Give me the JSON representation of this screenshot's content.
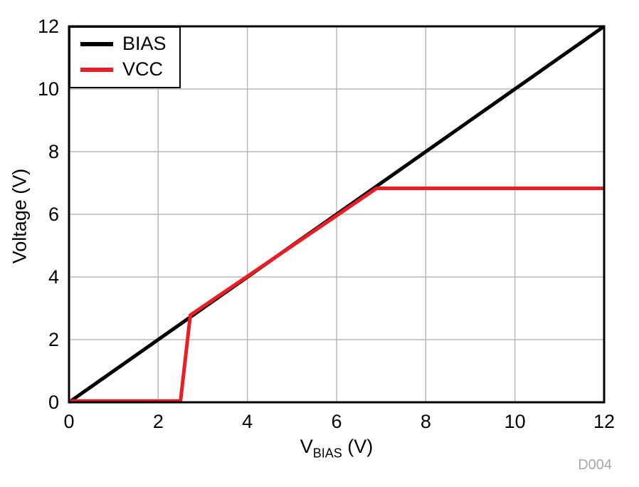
{
  "chart_data": {
    "type": "line",
    "title": "",
    "xlabel_main": "V",
    "xlabel_sub": "BIAS",
    "xlabel_unit": " (V)",
    "ylabel": "Voltage (V)",
    "xlim": [
      0,
      12
    ],
    "ylim": [
      0,
      12
    ],
    "xticks": [
      0,
      2,
      4,
      6,
      8,
      10,
      12
    ],
    "yticks": [
      0,
      2,
      4,
      6,
      8,
      10,
      12
    ],
    "grid": true,
    "grid_color": "#b8b8b8",
    "border_color": "#000000",
    "legend_position": "top-left",
    "figure_id": "D004",
    "series": [
      {
        "name": "BIAS",
        "color": "#000000",
        "points": [
          [
            0,
            0
          ],
          [
            12,
            12
          ]
        ]
      },
      {
        "name": "VCC",
        "color": "#ed1c24",
        "points": [
          [
            0,
            0.04
          ],
          [
            2.5,
            0.04
          ],
          [
            2.72,
            2.78
          ],
          [
            6.9,
            6.83
          ],
          [
            12,
            6.83
          ]
        ]
      }
    ]
  }
}
